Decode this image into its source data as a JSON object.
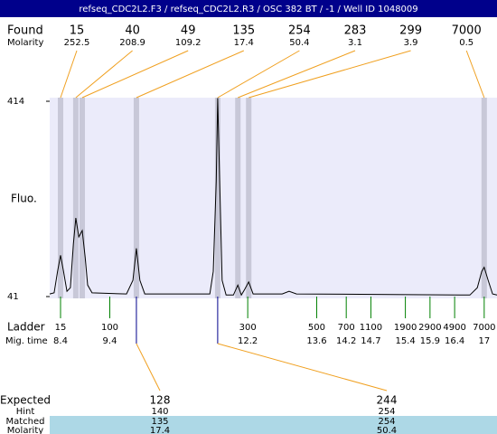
{
  "header": {
    "title": "refseq_CDC2L2.F3 / refseq_CDC2L2.R3 / OSC 382 BT / -1 / Well ID 1048009"
  },
  "found": {
    "label": "Found",
    "molarity_label": "Molarity",
    "peaks": [
      {
        "size": 15,
        "molarity": 252.5,
        "time": 8.4
      },
      {
        "size": 40,
        "molarity": 208.9,
        "time": 8.71
      },
      {
        "size": 49,
        "molarity": 109.2,
        "time": 8.84
      },
      {
        "size": 135,
        "molarity": 17.4,
        "time": 9.94
      },
      {
        "size": 254,
        "molarity": 50.4,
        "time": 11.59
      },
      {
        "size": 283,
        "molarity": 3.1,
        "time": 12.0
      },
      {
        "size": 299,
        "molarity": 3.9,
        "time": 12.22
      },
      {
        "size": 7000,
        "molarity": 0.5,
        "time": 17.0
      }
    ]
  },
  "chart_data": {
    "type": "line",
    "y_label": "Fluo.",
    "color": "#000000",
    "xlim": [
      8.18,
      17.26
    ],
    "ylim": [
      41,
      414
    ],
    "yticks": [
      41,
      414
    ],
    "x": [
      8.18,
      8.27,
      8.34,
      8.4,
      8.46,
      8.53,
      8.6,
      8.66,
      8.71,
      8.77,
      8.84,
      8.9,
      8.95,
      9.04,
      9.74,
      9.87,
      9.94,
      10.01,
      10.11,
      11.43,
      11.5,
      11.56,
      11.59,
      11.63,
      11.68,
      11.76,
      11.91,
      12.0,
      12.07,
      12.14,
      12.22,
      12.31,
      12.9,
      13.04,
      13.19,
      16.71,
      16.86,
      16.95,
      17.0,
      17.08,
      17.17,
      17.26
    ],
    "values": [
      46,
      48,
      89,
      120,
      89,
      51,
      58,
      141,
      191,
      155,
      167,
      115,
      63,
      48,
      46,
      72,
      133,
      72,
      46,
      46,
      89,
      262,
      420,
      262,
      72,
      44,
      44,
      63,
      44,
      55,
      69,
      46,
      46,
      51,
      46,
      44,
      58,
      89,
      97,
      72,
      46,
      44
    ]
  },
  "ladder": {
    "label": "Ladder",
    "time_label": "Mig. time",
    "sizes": [
      15,
      100,
      300,
      500,
      700,
      1100,
      1900,
      2900,
      4900,
      7000
    ],
    "times": [
      8.4,
      9.4,
      12.2,
      13.6,
      14.2,
      14.7,
      15.4,
      15.9,
      16.4,
      17
    ]
  },
  "expected": {
    "label": "Expected",
    "hint_label": "Hint",
    "matched_label": "Matched",
    "molarity_label": "Molarity",
    "columns": [
      {
        "expected": 128,
        "hint": 140,
        "matched": 135,
        "molarity": 17.4
      },
      {
        "expected": 244,
        "hint": 254,
        "matched": 254,
        "molarity": 50.4
      }
    ]
  }
}
